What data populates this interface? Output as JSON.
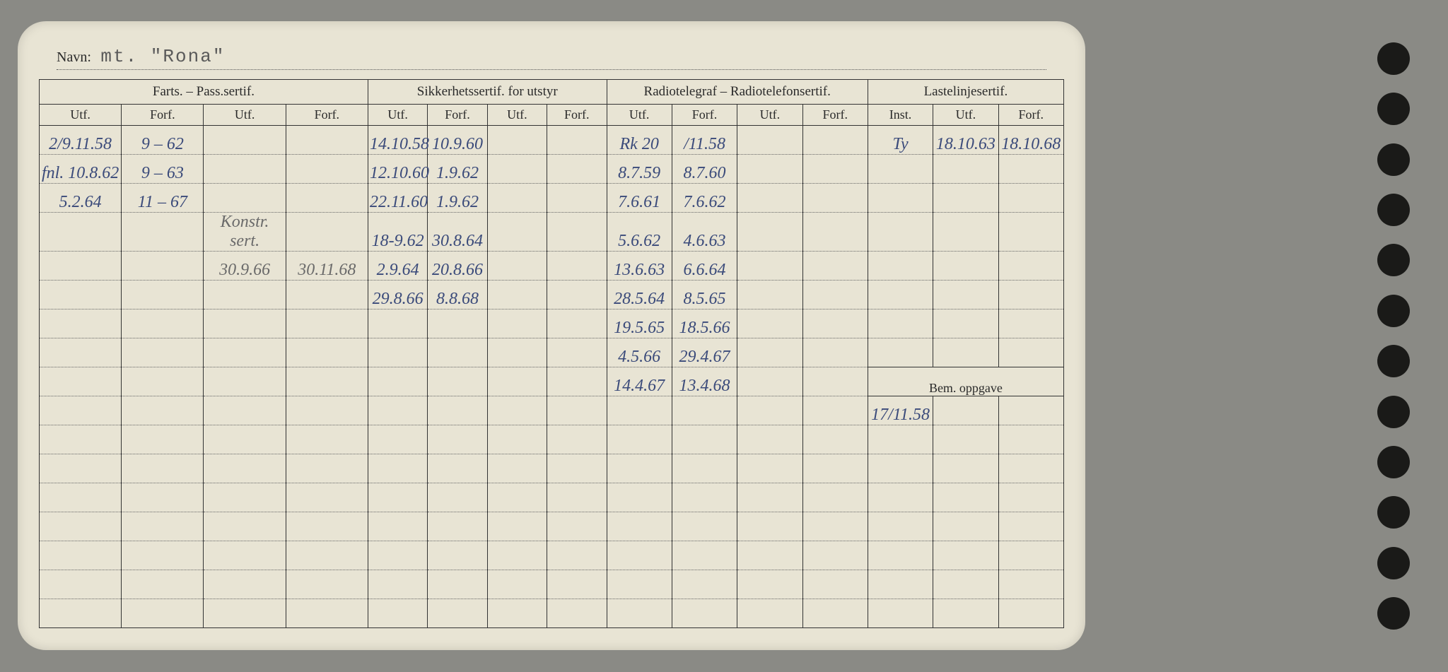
{
  "navn": {
    "label": "Navn:",
    "value": "mt. \"Rona\""
  },
  "headers": {
    "group1": "Farts. – Pass.sertif.",
    "group2": "Sikkerhetssertif. for utstyr",
    "group3": "Radiotelegraf – Radiotelefonsertif.",
    "group4": "Lastelinjesertif.",
    "utf": "Utf.",
    "forf": "Forf.",
    "inst": "Inst.",
    "bem": "Bem. oppgave"
  },
  "rows": [
    {
      "c1": "2/9.11.58",
      "c2": "9 – 62",
      "c3": "",
      "c4": "",
      "c5": "14.10.58",
      "c6": "10.9.60",
      "c7": "",
      "c8": "",
      "c9": "Rk 20",
      "c10": "/11.58",
      "c11": "",
      "c12": "",
      "c13": "Ty",
      "c14": "18.10.63",
      "c15": "18.10.68"
    },
    {
      "c1": "fnl. 10.8.62",
      "c2": "9 – 63",
      "c3": "",
      "c4": "",
      "c5": "12.10.60",
      "c6": "1.9.62",
      "c7": "",
      "c8": "",
      "c9": "8.7.59",
      "c10": "8.7.60",
      "c11": "",
      "c12": "",
      "c13": "",
      "c14": "",
      "c15": ""
    },
    {
      "c1": "5.2.64",
      "c2": "11 – 67",
      "c3": "",
      "c4": "",
      "c5": "22.11.60",
      "c6": "1.9.62",
      "c7": "",
      "c8": "",
      "c9": "7.6.61",
      "c10": "7.6.62",
      "c11": "",
      "c12": "",
      "c13": "",
      "c14": "",
      "c15": ""
    },
    {
      "c1": "",
      "c2": "",
      "c3": "Konstr. sert.",
      "c4": "",
      "c5": "18-9.62",
      "c6": "30.8.64",
      "c7": "",
      "c8": "",
      "c9": "5.6.62",
      "c10": "4.6.63",
      "c11": "",
      "c12": "",
      "c13": "",
      "c14": "",
      "c15": ""
    },
    {
      "c1": "",
      "c2": "",
      "c3": "30.9.66",
      "c4": "30.11.68",
      "c5": "2.9.64",
      "c6": "20.8.66",
      "c7": "",
      "c8": "",
      "c9": "13.6.63",
      "c10": "6.6.64",
      "c11": "",
      "c12": "",
      "c13": "",
      "c14": "",
      "c15": ""
    },
    {
      "c1": "",
      "c2": "",
      "c3": "",
      "c4": "",
      "c5": "29.8.66",
      "c6": "8.8.68",
      "c7": "",
      "c8": "",
      "c9": "28.5.64",
      "c10": "8.5.65",
      "c11": "",
      "c12": "",
      "c13": "",
      "c14": "",
      "c15": ""
    },
    {
      "c1": "",
      "c2": "",
      "c3": "",
      "c4": "",
      "c5": "",
      "c6": "",
      "c7": "",
      "c8": "",
      "c9": "19.5.65",
      "c10": "18.5.66",
      "c11": "",
      "c12": "",
      "c13": "",
      "c14": "",
      "c15": ""
    },
    {
      "c1": "",
      "c2": "",
      "c3": "",
      "c4": "",
      "c5": "",
      "c6": "",
      "c7": "",
      "c8": "",
      "c9": "4.5.66",
      "c10": "29.4.67",
      "c11": "",
      "c12": "",
      "c13": "",
      "c14": "",
      "c15": ""
    },
    {
      "c1": "",
      "c2": "",
      "c3": "",
      "c4": "",
      "c5": "",
      "c6": "",
      "c7": "",
      "c8": "",
      "c9": "14.4.67",
      "c10": "13.4.68",
      "c11": "",
      "c12": "",
      "c13": "",
      "c14": "",
      "c15": ""
    }
  ],
  "bem_after": [
    {
      "c13": "17/11.58",
      "c14": "",
      "c15": ""
    },
    {
      "c13": "",
      "c14": "",
      "c15": ""
    },
    {
      "c13": "",
      "c14": "",
      "c15": ""
    },
    {
      "c13": "",
      "c14": "",
      "c15": ""
    },
    {
      "c13": "",
      "c14": "",
      "c15": ""
    },
    {
      "c13": "",
      "c14": "",
      "c15": ""
    }
  ],
  "left_extra_rows": 8
}
